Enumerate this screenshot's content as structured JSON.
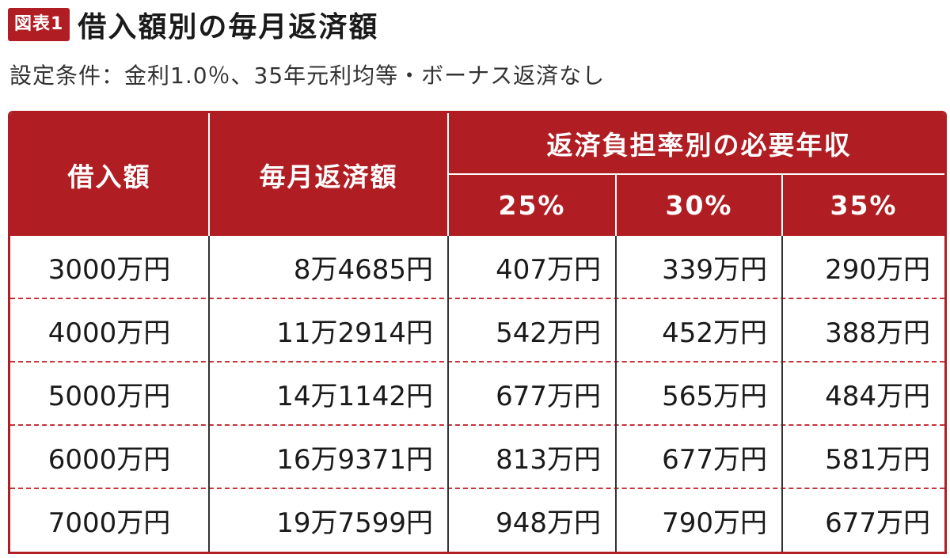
{
  "header": {
    "badge": "図表1",
    "title": "借入額別の毎月返済額",
    "subtitle": "設定条件：金利1.0％、35年元利均等・ボーナス返済なし"
  },
  "table": {
    "col_loan": "借入額",
    "col_monthly": "毎月返済額",
    "col_group": "返済負担率別の必要年収",
    "col_25": "25%",
    "col_30": "30%",
    "col_35": "35%",
    "rows": [
      {
        "loan": "3000万円",
        "monthly": "8万4685円",
        "r25": "407万円",
        "r30": "339万円",
        "r35": "290万円"
      },
      {
        "loan": "4000万円",
        "monthly": "11万2914円",
        "r25": "542万円",
        "r30": "452万円",
        "r35": "388万円"
      },
      {
        "loan": "5000万円",
        "monthly": "14万1142円",
        "r25": "677万円",
        "r30": "565万円",
        "r35": "484万円"
      },
      {
        "loan": "6000万円",
        "monthly": "16万9371円",
        "r25": "813万円",
        "r30": "677万円",
        "r35": "581万円"
      },
      {
        "loan": "7000万円",
        "monthly": "19万7599円",
        "r25": "948万円",
        "r30": "790万円",
        "r35": "677万円"
      }
    ]
  },
  "colors": {
    "accent": "#b01e23"
  }
}
